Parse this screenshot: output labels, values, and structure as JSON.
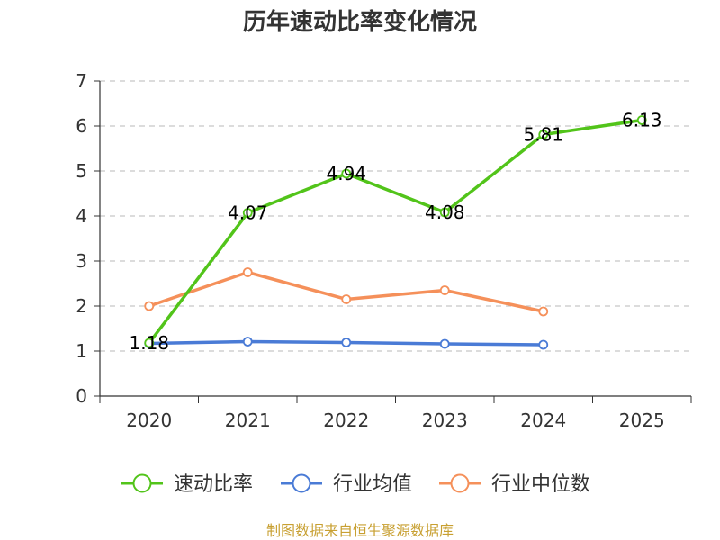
{
  "chart_data": {
    "type": "line",
    "title": "历年速动比率变化情况",
    "categories": [
      "2020",
      "2021",
      "2022",
      "2023",
      "2024",
      "2025"
    ],
    "ylim": [
      0,
      7
    ],
    "yticks": [
      "0",
      "1",
      "2",
      "3",
      "4",
      "5",
      "6",
      "7"
    ],
    "grid": true,
    "legend_position": "bottom",
    "series": [
      {
        "name": "速动比率",
        "color": "#52c41a",
        "values": [
          1.18,
          4.07,
          4.94,
          4.08,
          5.81,
          6.13
        ],
        "labels": [
          "1.18",
          "4.07",
          "4.94",
          "4.08",
          "5.81",
          "6.13"
        ]
      },
      {
        "name": "行业均值",
        "color": "#4a7bd6",
        "values": [
          1.17,
          1.21,
          1.19,
          1.16,
          1.14,
          null
        ]
      },
      {
        "name": "行业中位数",
        "color": "#f5905a",
        "values": [
          2.0,
          2.75,
          2.15,
          2.35,
          1.88,
          null
        ]
      }
    ],
    "source": "制图数据来自恒生聚源数据库"
  }
}
